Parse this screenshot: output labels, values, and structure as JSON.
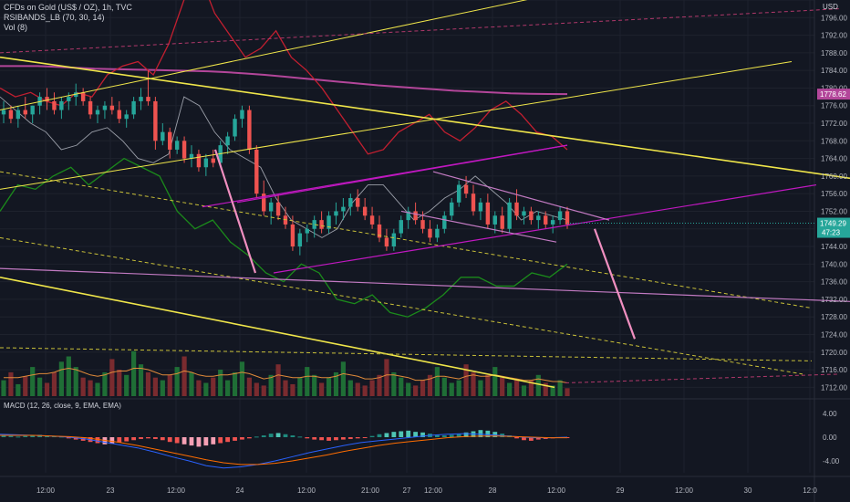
{
  "header": {
    "symbol": "CFDs on Gold (US$ / OZ), 1h, TVC",
    "indicator1": "RSIBANDS_LB (70, 30, 14)",
    "indicator2": "Vol (8)",
    "currency": "USD"
  },
  "macd_title": "MACD (12, 26, close, 9, EMA, EMA)",
  "colors": {
    "bg": "#131722",
    "up": "#26a69a",
    "down": "#ef5350",
    "grid": "#1e222d",
    "ma": "#b3469a",
    "rsi_upper": "#c21f30",
    "rsi_lower": "#1b8a1b",
    "trend_yellow": "#f0e64a",
    "channel_magenta": "#c018c0",
    "pink": "#f08fc0"
  },
  "chart_data": [
    {
      "type": "candlestick",
      "ylim": [
        1710,
        1800
      ],
      "y_ticks": [
        "1800.00",
        "1796.00",
        "1792.00",
        "1788.00",
        "1784.00",
        "1780.00",
        "1776.00",
        "1772.00",
        "1768.00",
        "1764.00",
        "1760.00",
        "1756.00",
        "1752.00",
        "1748.00",
        "1744.00",
        "1740.00",
        "1736.00",
        "1732.00",
        "1728.00",
        "1724.00",
        "1720.00",
        "1716.00",
        "1712.00"
      ],
      "x_ticks": [
        "12:00",
        "23",
        "12:00",
        "24",
        "12:00",
        "21:00",
        "27",
        "12:00",
        "28",
        "12:00",
        "29",
        "12:00",
        "30",
        "12:0"
      ],
      "price_badge": {
        "value": "1778.62",
        "price": 1778.62,
        "color": "#b3469a"
      },
      "last_badge": {
        "value": "1749.29",
        "sub": "47:23",
        "price": 1749.29,
        "color": "#26a69a"
      },
      "candles": [
        [
          1774,
          1777,
          1772,
          1775
        ],
        [
          1775,
          1776,
          1772,
          1773
        ],
        [
          1773,
          1776,
          1771,
          1775
        ],
        [
          1775,
          1778,
          1773,
          1774
        ],
        [
          1774,
          1776,
          1772,
          1776
        ],
        [
          1776,
          1779,
          1774,
          1778
        ],
        [
          1778,
          1780,
          1775,
          1777
        ],
        [
          1777,
          1779,
          1774,
          1775
        ],
        [
          1775,
          1778,
          1773,
          1777
        ],
        [
          1777,
          1779,
          1775,
          1778
        ],
        [
          1778,
          1781,
          1776,
          1779
        ],
        [
          1779,
          1780,
          1776,
          1777
        ],
        [
          1777,
          1778,
          1773,
          1774
        ],
        [
          1774,
          1776,
          1772,
          1775
        ],
        [
          1775,
          1777,
          1773,
          1776
        ],
        [
          1776,
          1778,
          1774,
          1775
        ],
        [
          1775,
          1777,
          1772,
          1773
        ],
        [
          1773,
          1775,
          1771,
          1774
        ],
        [
          1774,
          1778,
          1773,
          1777
        ],
        [
          1777,
          1780,
          1775,
          1778
        ],
        [
          1778,
          1784,
          1776,
          1777
        ],
        [
          1777,
          1778,
          1766,
          1768
        ],
        [
          1768,
          1772,
          1767,
          1770
        ],
        [
          1770,
          1771,
          1764,
          1766
        ],
        [
          1766,
          1769,
          1765,
          1768
        ],
        [
          1768,
          1769,
          1763,
          1764
        ],
        [
          1764,
          1767,
          1762,
          1765
        ],
        [
          1765,
          1766,
          1761,
          1762
        ],
        [
          1762,
          1765,
          1760,
          1764
        ],
        [
          1764,
          1766,
          1762,
          1763
        ],
        [
          1763,
          1768,
          1762,
          1767
        ],
        [
          1767,
          1770,
          1765,
          1769
        ],
        [
          1769,
          1774,
          1768,
          1773
        ],
        [
          1773,
          1776,
          1771,
          1775
        ],
        [
          1775,
          1776,
          1765,
          1766
        ],
        [
          1766,
          1767,
          1755,
          1756
        ],
        [
          1756,
          1759,
          1751,
          1752
        ],
        [
          1752,
          1755,
          1749,
          1754
        ],
        [
          1754,
          1756,
          1750,
          1751
        ],
        [
          1751,
          1753,
          1748,
          1749
        ],
        [
          1749,
          1751,
          1743,
          1744
        ],
        [
          1744,
          1748,
          1742,
          1747
        ],
        [
          1747,
          1749,
          1745,
          1748
        ],
        [
          1748,
          1751,
          1746,
          1750
        ],
        [
          1750,
          1752,
          1747,
          1748
        ],
        [
          1748,
          1752,
          1747,
          1751
        ],
        [
          1751,
          1754,
          1749,
          1752
        ],
        [
          1752,
          1755,
          1750,
          1753
        ],
        [
          1753,
          1756,
          1751,
          1755
        ],
        [
          1755,
          1757,
          1752,
          1753
        ],
        [
          1753,
          1755,
          1750,
          1751
        ],
        [
          1751,
          1753,
          1748,
          1749
        ],
        [
          1749,
          1751,
          1745,
          1746
        ],
        [
          1746,
          1748,
          1743,
          1744
        ],
        [
          1744,
          1748,
          1743,
          1747
        ],
        [
          1747,
          1751,
          1746,
          1750
        ],
        [
          1750,
          1753,
          1748,
          1752
        ],
        [
          1752,
          1754,
          1749,
          1750
        ],
        [
          1750,
          1752,
          1747,
          1748
        ],
        [
          1748,
          1750,
          1745,
          1746
        ],
        [
          1746,
          1749,
          1745,
          1748
        ],
        [
          1748,
          1752,
          1747,
          1751
        ],
        [
          1751,
          1755,
          1750,
          1754
        ],
        [
          1754,
          1759,
          1753,
          1758
        ],
        [
          1758,
          1760,
          1755,
          1756
        ],
        [
          1756,
          1758,
          1751,
          1752
        ],
        [
          1752,
          1755,
          1750,
          1754
        ],
        [
          1754,
          1756,
          1748,
          1749
        ],
        [
          1749,
          1752,
          1747,
          1751
        ],
        [
          1751,
          1753,
          1747,
          1748
        ],
        [
          1748,
          1755,
          1747,
          1754
        ],
        [
          1754,
          1757,
          1750,
          1751
        ],
        [
          1751,
          1753,
          1749,
          1752
        ],
        [
          1752,
          1753,
          1749,
          1750
        ],
        [
          1750,
          1752,
          1748,
          1751
        ],
        [
          1751,
          1752,
          1748,
          1749
        ],
        [
          1749,
          1751,
          1747,
          1750
        ],
        [
          1750,
          1753,
          1749,
          1752
        ],
        [
          1752,
          1753,
          1748,
          1749
        ]
      ],
      "moving_average": [
        1785,
        1785,
        1785,
        1784.8,
        1784.6,
        1784.4,
        1784.3,
        1784.2,
        1784.1,
        1784,
        1783.9,
        1783.8,
        1783.6,
        1783.3,
        1783,
        1782.6,
        1782.2,
        1781.8,
        1781.4,
        1781,
        1780.6,
        1780.3,
        1780,
        1779.7,
        1779.4,
        1779.2,
        1779,
        1778.8,
        1778.7,
        1778.65,
        1778.62
      ],
      "rsi_upper": [
        1780,
        1778,
        1779,
        1777,
        1776,
        1779,
        1778,
        1783,
        1785,
        1786,
        1783,
        1790,
        1800,
        1806,
        1797,
        1792,
        1787,
        1789,
        1793,
        1787,
        1784,
        1780,
        1775,
        1770,
        1765,
        1766,
        1770,
        1772,
        1774,
        1770,
        1768,
        1771,
        1775,
        1777,
        1774,
        1770,
        1769,
        1766
      ],
      "rsi_mid": [
        1778,
        1775,
        1772,
        1770,
        1766,
        1767,
        1770,
        1771,
        1768,
        1764,
        1763,
        1765,
        1778,
        1776,
        1770,
        1766,
        1764,
        1762,
        1755,
        1750,
        1748,
        1746,
        1748,
        1754,
        1758,
        1758,
        1754,
        1750,
        1752,
        1755,
        1757,
        1760,
        1757,
        1754,
        1750,
        1752,
        1751,
        1750
      ],
      "rsi_lower": [
        1752,
        1758,
        1757,
        1760,
        1762,
        1758,
        1761,
        1764,
        1762,
        1760,
        1752,
        1748,
        1750,
        1745,
        1742,
        1738,
        1736,
        1740,
        1738,
        1732,
        1731,
        1733,
        1729,
        1728,
        1730,
        1733,
        1737,
        1737,
        1735,
        1735,
        1738,
        1737,
        1740
      ],
      "volume": [
        12,
        18,
        9,
        15,
        22,
        14,
        10,
        18,
        26,
        30,
        22,
        14,
        12,
        10,
        18,
        28,
        20,
        16,
        34,
        24,
        18,
        14,
        12,
        16,
        22,
        30,
        18,
        12,
        10,
        14,
        20,
        12,
        18,
        26,
        14,
        10,
        8,
        16,
        24,
        12,
        9,
        14,
        22,
        16,
        10,
        14,
        18,
        26,
        12,
        10,
        8,
        12,
        16,
        28,
        18,
        14,
        10,
        8,
        12,
        16,
        22,
        14,
        10,
        12,
        24,
        18,
        12,
        16,
        22,
        14,
        10,
        12,
        8,
        12,
        16,
        10,
        8,
        12,
        6
      ],
      "volume_ma": [
        14,
        14,
        14,
        15,
        16,
        17,
        17,
        18,
        20,
        21,
        20,
        18,
        16,
        15,
        16,
        18,
        19,
        19,
        21,
        21,
        20,
        18,
        16,
        16,
        17,
        19,
        18,
        16,
        15,
        15,
        16,
        16,
        17,
        18,
        17,
        15,
        13,
        14,
        16,
        15,
        14,
        14,
        15,
        15,
        14,
        14,
        15,
        17,
        16,
        15,
        13,
        13,
        14,
        16,
        16,
        15,
        14,
        12,
        12,
        13,
        15,
        15,
        14,
        13,
        15,
        16,
        15,
        15,
        16,
        15,
        14,
        13,
        12,
        12,
        13,
        12,
        11,
        11,
        10
      ],
      "annotations": {
        "yellow_lines": [
          {
            "x1": 0,
            "p1": 1787,
            "x2": 932,
            "p2": 1759.5
          },
          {
            "x1": 0,
            "p1": 1757,
            "x2": 868,
            "p2": 1786
          },
          {
            "x1": 0,
            "p1": 1775,
            "x2": 622,
            "p2": 1802
          },
          {
            "x1": 0,
            "p1": 1737,
            "x2": 608,
            "p2": 1712
          }
        ],
        "dashed_yellow": [
          {
            "x1": 0,
            "p1": 1761,
            "x2": 890,
            "p2": 1730
          },
          {
            "x1": 0,
            "p1": 1746,
            "x2": 880,
            "p2": 1715
          },
          {
            "x1": 0,
            "p1": 1721,
            "x2": 890,
            "p2": 1718
          }
        ],
        "dashed_pink": [
          {
            "x1": 0,
            "p1": 1788,
            "x2": 920,
            "p2": 1798
          },
          {
            "x1": 620,
            "p1": 1713,
            "x2": 920,
            "p2": 1715
          }
        ],
        "magenta_lines": [
          {
            "x1": 300,
            "p1": 1738,
            "x2": 895,
            "p2": 1758
          },
          {
            "x1": 222,
            "p1": 1753,
            "x2": 622,
            "p2": 1767
          },
          {
            "x1": 260,
            "p1": 1754,
            "x2": 622,
            "p2": 1767
          }
        ],
        "light_magenta": [
          {
            "x1": 0,
            "p1": 1739,
            "x2": 932,
            "p2": 1731.5
          },
          {
            "x1": 475,
            "p1": 1761,
            "x2": 668,
            "p2": 1750
          },
          {
            "x1": 440,
            "p1": 1752,
            "x2": 610,
            "p2": 1745
          }
        ],
        "pink_arrows": [
          {
            "x1": 236,
            "p1": 1766,
            "x2": 280,
            "p2": 1738
          },
          {
            "x1": 652,
            "p1": 1748,
            "x2": 696,
            "p2": 1723
          }
        ]
      }
    },
    {
      "type": "histogram",
      "name": "MACD (12, 26, close, 9, EMA, EMA)",
      "ylim": [
        -6,
        6
      ],
      "y_ticks": [
        "4.00",
        "0.00",
        "-4.00"
      ],
      "histogram": [
        0.3,
        0.2,
        0.1,
        0.2,
        0.3,
        0.4,
        0.3,
        0.2,
        0.1,
        -0.2,
        -0.4,
        -0.6,
        -0.8,
        -1,
        -1.2,
        -1.1,
        -0.9,
        -0.7,
        -0.5,
        -0.3,
        -0.2,
        -0.3,
        -0.5,
        -0.8,
        -1.0,
        -1.2,
        -1.4,
        -1.6,
        -1.4,
        -1.2,
        -1.0,
        -0.8,
        -0.6,
        -0.4,
        -0.2,
        0.1,
        0.3,
        0.6,
        0.7,
        0.5,
        0.3,
        0.1,
        -0.2,
        -0.4,
        -0.5,
        -0.6,
        -0.5,
        -0.4,
        -0.3,
        -0.2,
        -0.1,
        0.2,
        0.5,
        0.7,
        0.9,
        1.0,
        1.1,
        0.9,
        0.8,
        0.6,
        0.4,
        0.3,
        0.4,
        0.6,
        0.8,
        1.0,
        1.2,
        1.1,
        0.9,
        0.6,
        0.3,
        -0.2,
        -0.5,
        -0.6,
        -0.4,
        -0.3,
        -0.2,
        -0.1,
        -0.1
      ],
      "macd_line": [
        0.5,
        0.4,
        0.3,
        0.2,
        0.0,
        -0.3,
        -0.8,
        -1.3,
        -1.8,
        -2.5,
        -3.3,
        -4.0,
        -4.8,
        -5.2,
        -5.0,
        -4.6,
        -4.0,
        -3.3,
        -2.6,
        -2.0,
        -1.4,
        -0.9,
        -0.6,
        -0.3,
        0,
        0.3,
        0.5,
        0.6,
        0.5,
        0.3,
        0.1,
        -0.1,
        -0.1,
        0
      ],
      "signal_line": [
        0.3,
        0.3,
        0.3,
        0.2,
        0.1,
        -0.1,
        -0.5,
        -0.9,
        -1.4,
        -2.0,
        -2.6,
        -3.2,
        -3.8,
        -4.3,
        -4.6,
        -4.6,
        -4.4,
        -4.0,
        -3.5,
        -3.0,
        -2.4,
        -1.9,
        -1.4,
        -1.0,
        -0.7,
        -0.4,
        -0.1,
        0.1,
        0.2,
        0.2,
        0.1,
        0,
        -0.1,
        -0.1
      ]
    }
  ]
}
